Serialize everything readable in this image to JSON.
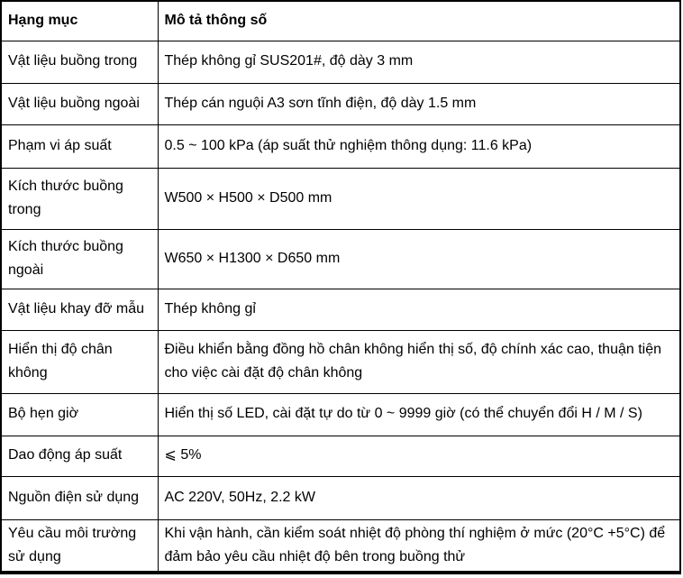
{
  "colors": {
    "border": "#000000",
    "text": "#000000",
    "background": "#ffffff"
  },
  "table": {
    "columns": [
      {
        "label": "Hạng mục"
      },
      {
        "label": "Mô tả thông số"
      }
    ],
    "rows": [
      {
        "item": "Vật liệu buồng trong",
        "description": "Thép không gỉ SUS201#, độ dày 3 mm"
      },
      {
        "item": "Vật liệu buồng ngoài",
        "description": "Thép cán nguội A3 sơn tĩnh điện, độ dày 1.5 mm"
      },
      {
        "item": "Phạm vi áp suất",
        "description": "0.5 ~ 100 kPa (áp suất thử nghiệm thông dụng: 11.6 kPa)"
      },
      {
        "item": "Kích thước buồng trong",
        "description": "W500 × H500 × D500 mm"
      },
      {
        "item": "Kích thước buồng ngoài",
        "description": "W650 × H1300 × D650 mm"
      },
      {
        "item": "Vật liệu khay đỡ mẫu",
        "description": "Thép không gỉ"
      },
      {
        "item": "Hiển thị độ chân không",
        "description": "Điều khiển bằng đồng hồ chân không hiển thị số, độ chính xác cao, thuận tiện cho việc cài đặt độ chân không"
      },
      {
        "item": "Bộ hẹn giờ",
        "description": "Hiển thị số LED, cài đặt tự do từ 0 ~ 9999 giờ (có thể chuyển đổi H / M / S)"
      },
      {
        "item": "Dao động áp suất",
        "description": "⩽ 5%"
      },
      {
        "item": "Nguồn điện sử dụng",
        "description": "AC 220V, 50Hz, 2.2 kW"
      },
      {
        "item": "Yêu cầu môi trường sử dụng",
        "description": "Khi vận hành, cần kiểm soát nhiệt độ phòng thí nghiệm ở mức (20°C +5°C) để đảm bảo yêu cầu nhiệt độ bên trong buồng thử"
      }
    ]
  }
}
